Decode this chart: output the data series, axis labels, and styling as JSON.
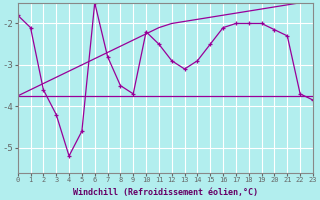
{
  "xlabel": "Windchill (Refroidissement éolien,°C)",
  "bg_color": "#b2eeee",
  "line_color": "#990099",
  "grid_color": "#ffffff",
  "hours": [
    0,
    1,
    2,
    3,
    4,
    5,
    6,
    7,
    8,
    9,
    10,
    11,
    12,
    13,
    14,
    15,
    16,
    17,
    18,
    19,
    20,
    21,
    22,
    23
  ],
  "series1": [
    -1.8,
    -2.1,
    -3.6,
    -4.2,
    -5.2,
    -4.6,
    -1.5,
    -2.8,
    -3.5,
    -3.7,
    -2.2,
    -2.5,
    -2.9,
    -3.1,
    -2.9,
    -2.5,
    -2.1,
    -2.0,
    -2.0,
    -2.0,
    -2.15,
    -2.3,
    -3.7,
    -3.85
  ],
  "series2": [
    -3.75,
    -3.75,
    -3.75,
    -3.75,
    -3.75,
    -3.75,
    -3.75,
    -3.75,
    -3.75,
    -3.75,
    -3.75,
    -3.75,
    -3.75,
    -3.75,
    -3.75,
    -3.75,
    -3.75,
    -3.75,
    -3.75,
    -3.75,
    -3.75,
    -3.75,
    -3.75,
    -3.75
  ],
  "series3": [
    -3.75,
    -3.6,
    -3.45,
    -3.3,
    -3.15,
    -3.0,
    -2.85,
    -2.7,
    -2.55,
    -2.4,
    -2.25,
    -2.1,
    -2.0,
    -1.95,
    -1.9,
    -1.85,
    -1.8,
    -1.75,
    -1.7,
    -1.65,
    -1.6,
    -1.55,
    -1.5,
    -1.45
  ],
  "ylim": [
    -5.6,
    -1.5
  ],
  "yticks": [
    -5,
    -4,
    -3,
    -2
  ],
  "xlim": [
    0,
    23
  ]
}
